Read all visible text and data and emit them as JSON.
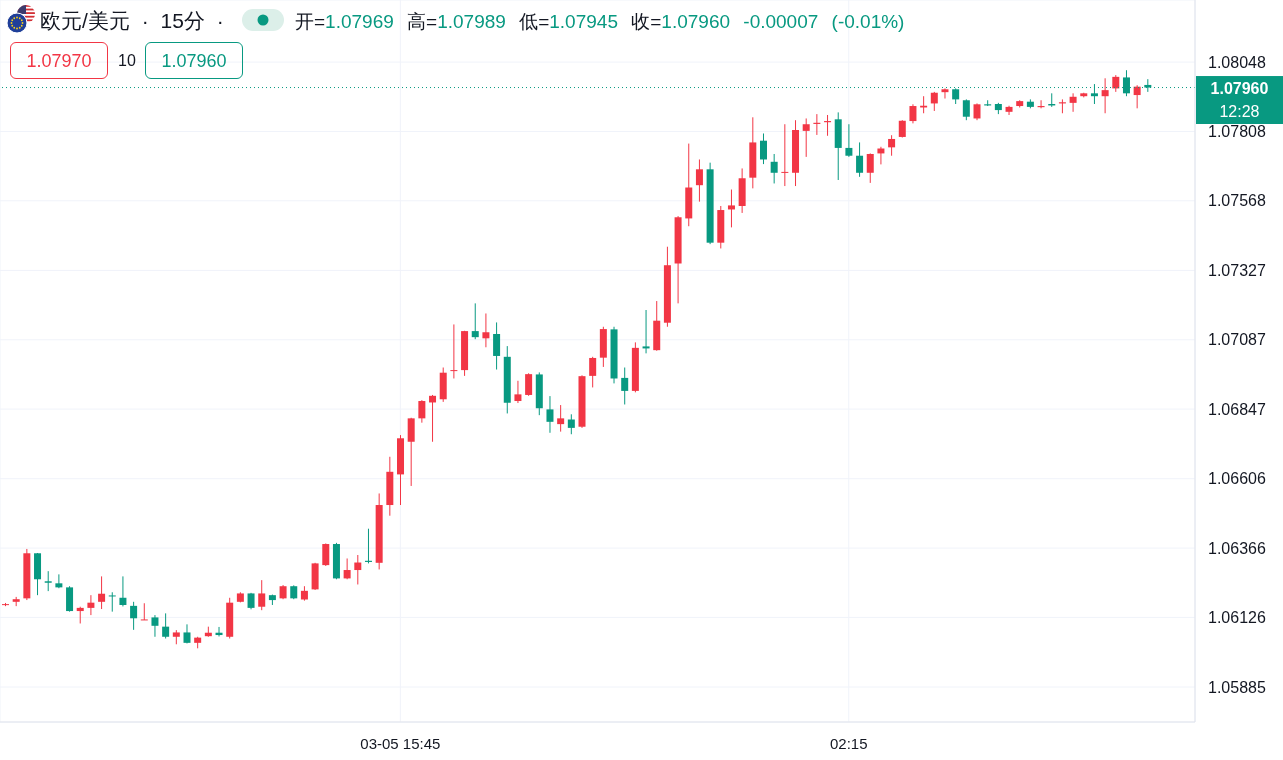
{
  "chart_data": {
    "type": "candlestick",
    "title": "欧元/美元 · 15分 ·",
    "subtitle": "开=1.07969 高=1.07989 低=1.07945 收=1.07960 -0.00007 (-0.01%)",
    "categories": [
      null,
      null,
      null,
      null,
      null,
      null,
      null,
      null,
      null,
      null,
      null,
      null,
      null,
      null,
      null,
      null,
      null,
      null,
      null,
      null,
      null,
      null,
      null,
      null,
      null,
      null,
      null,
      null,
      null,
      null,
      null,
      null,
      null,
      null,
      null,
      null,
      null,
      "03-05 15:45",
      null,
      null,
      null,
      null,
      null,
      null,
      null,
      null,
      null,
      null,
      null,
      null,
      null,
      null,
      null,
      null,
      null,
      null,
      null,
      null,
      null,
      null,
      null,
      null,
      null,
      null,
      null,
      null,
      null,
      null,
      null,
      null,
      null,
      null,
      null,
      null,
      null,
      null,
      null,
      null,
      null,
      "02:15",
      null,
      null,
      null,
      null,
      null,
      null,
      null,
      null,
      null,
      null,
      null,
      null,
      null,
      null,
      null,
      null,
      null,
      null,
      null,
      null,
      null,
      null,
      null,
      null,
      null,
      null,
      null,
      null
    ],
    "ohlc": [
      [
        1.06169,
        1.06176,
        1.06165,
        1.06172
      ],
      [
        1.0618,
        1.06197,
        1.06165,
        1.06189
      ],
      [
        1.06192,
        1.06363,
        1.06186,
        1.06348
      ],
      [
        1.06348,
        1.06349,
        1.06203,
        1.06258
      ],
      [
        1.06251,
        1.06286,
        1.06217,
        1.06246
      ],
      [
        1.06244,
        1.06275,
        1.06227,
        1.0623
      ],
      [
        1.0623,
        1.06234,
        1.06146,
        1.06148
      ],
      [
        1.06148,
        1.06163,
        1.06105,
        1.06159
      ],
      [
        1.06159,
        1.06203,
        1.06134,
        1.06177
      ],
      [
        1.0618,
        1.06268,
        1.06155,
        1.06208
      ],
      [
        1.06202,
        1.06213,
        1.06146,
        1.06199
      ],
      [
        1.06194,
        1.06268,
        1.06164,
        1.06169
      ],
      [
        1.06166,
        1.0618,
        1.06083,
        1.06123
      ],
      [
        1.06118,
        1.06175,
        1.06117,
        1.06119
      ],
      [
        1.06126,
        1.06134,
        1.06059,
        1.06097
      ],
      [
        1.06094,
        1.0614,
        1.06053,
        1.06059
      ],
      [
        1.06059,
        1.06082,
        1.06033,
        1.06074
      ],
      [
        1.06074,
        1.06102,
        1.06036,
        1.06038
      ],
      [
        1.06038,
        1.06059,
        1.06019,
        1.06056
      ],
      [
        1.06061,
        1.06094,
        1.06059,
        1.06073
      ],
      [
        1.06073,
        1.06093,
        1.0606,
        1.06065
      ],
      [
        1.06059,
        1.06194,
        1.06053,
        1.06177
      ],
      [
        1.0618,
        1.06213,
        1.06178,
        1.06209
      ],
      [
        1.06209,
        1.06211,
        1.06154,
        1.06159
      ],
      [
        1.06163,
        1.06255,
        1.06151,
        1.06209
      ],
      [
        1.06203,
        1.06205,
        1.06169,
        1.06186
      ],
      [
        1.06192,
        1.06238,
        1.06189,
        1.06234
      ],
      [
        1.06234,
        1.06237,
        1.06189,
        1.06192
      ],
      [
        1.06188,
        1.06234,
        1.06184,
        1.06218
      ],
      [
        1.06223,
        1.06315,
        1.06221,
        1.06313
      ],
      [
        1.06307,
        1.06382,
        1.06304,
        1.0638
      ],
      [
        1.0638,
        1.06384,
        1.06258,
        1.06261
      ],
      [
        1.06261,
        1.0633,
        1.06258,
        1.0629
      ],
      [
        1.0629,
        1.06342,
        1.0624,
        1.06316
      ],
      [
        1.06322,
        1.06433,
        1.06313,
        1.06318
      ],
      [
        1.06315,
        1.06555,
        1.06292,
        1.06515
      ],
      [
        1.06515,
        1.06682,
        1.06478,
        1.0663
      ],
      [
        1.06621,
        1.06757,
        1.06515,
        1.06746
      ],
      [
        1.06734,
        1.06817,
        1.06581,
        1.06815
      ],
      [
        1.06815,
        1.06878,
        1.068,
        1.06875
      ],
      [
        1.0687,
        1.06896,
        1.06734,
        1.06893
      ],
      [
        1.06881,
        1.06991,
        1.06872,
        1.06973
      ],
      [
        1.0698,
        1.0714,
        1.06953,
        1.06982
      ],
      [
        1.06982,
        1.07118,
        1.06962,
        1.07117
      ],
      [
        1.07117,
        1.07213,
        1.07089,
        1.07096
      ],
      [
        1.07092,
        1.07178,
        1.07061,
        1.07113
      ],
      [
        1.07107,
        1.07147,
        1.06984,
        1.07031
      ],
      [
        1.07028,
        1.07065,
        1.06832,
        1.06869
      ],
      [
        1.06875,
        1.06945,
        1.06868,
        1.06898
      ],
      [
        1.06896,
        1.06971,
        1.06893,
        1.06968
      ],
      [
        1.06967,
        1.06974,
        1.06826,
        1.0685
      ],
      [
        1.06846,
        1.06892,
        1.06765,
        1.06803
      ],
      [
        1.06795,
        1.06861,
        1.06769,
        1.06815
      ],
      [
        1.06811,
        1.06829,
        1.0676,
        1.06782
      ],
      [
        1.06786,
        1.06964,
        1.06782,
        1.06961
      ],
      [
        1.06962,
        1.07028,
        1.06922,
        1.07024
      ],
      [
        1.07025,
        1.07132,
        1.06993,
        1.07124
      ],
      [
        1.07123,
        1.07132,
        1.06936,
        1.06953
      ],
      [
        1.06955,
        1.06991,
        1.06863,
        1.0691
      ],
      [
        1.0691,
        1.07078,
        1.06905,
        1.07059
      ],
      [
        1.07064,
        1.0719,
        1.0704,
        1.07057
      ],
      [
        1.07051,
        1.07221,
        1.07049,
        1.07153
      ],
      [
        1.07146,
        1.07409,
        1.07132,
        1.07345
      ],
      [
        1.07351,
        1.07515,
        1.07213,
        1.07511
      ],
      [
        1.07507,
        1.07766,
        1.0748,
        1.07614
      ],
      [
        1.07622,
        1.07711,
        1.07565,
        1.07677
      ],
      [
        1.07677,
        1.077,
        1.07418,
        1.07423
      ],
      [
        1.07423,
        1.0755,
        1.07403,
        1.07536
      ],
      [
        1.07538,
        1.07607,
        1.07476,
        1.07552
      ],
      [
        1.0755,
        1.0768,
        1.07526,
        1.07646
      ],
      [
        1.07648,
        1.07857,
        1.07611,
        1.0777
      ],
      [
        1.07776,
        1.07801,
        1.07695,
        1.07711
      ],
      [
        1.07703,
        1.0773,
        1.07628,
        1.07665
      ],
      [
        1.07665,
        1.07833,
        1.07619,
        1.07668
      ],
      [
        1.07665,
        1.07847,
        1.07619,
        1.07813
      ],
      [
        1.0781,
        1.07853,
        1.0772,
        1.07833
      ],
      [
        1.07834,
        1.07868,
        1.07796,
        1.07838
      ],
      [
        1.0784,
        1.07865,
        1.07793,
        1.07844
      ],
      [
        1.0785,
        1.07874,
        1.0764,
        1.07751
      ],
      [
        1.07751,
        1.07833,
        1.0772,
        1.07724
      ],
      [
        1.07724,
        1.0777,
        1.07651,
        1.07665
      ],
      [
        1.07665,
        1.07732,
        1.0763,
        1.0773
      ],
      [
        1.07732,
        1.07755,
        1.07694,
        1.07749
      ],
      [
        1.07753,
        1.07795,
        1.07724,
        1.07782
      ],
      [
        1.07789,
        1.07847,
        1.07787,
        1.07845
      ],
      [
        1.07844,
        1.07902,
        1.07836,
        1.07896
      ],
      [
        1.07891,
        1.0793,
        1.07871,
        1.07897
      ],
      [
        1.07905,
        1.07945,
        1.07879,
        1.07942
      ],
      [
        1.07944,
        1.07957,
        1.07922,
        1.07954
      ],
      [
        1.07954,
        1.07957,
        1.07903,
        1.07919
      ],
      [
        1.07916,
        1.07919,
        1.07847,
        1.07859
      ],
      [
        1.07853,
        1.07905,
        1.07847,
        1.07902
      ],
      [
        1.07902,
        1.07916,
        1.07896,
        1.07898
      ],
      [
        1.07903,
        1.07907,
        1.07868,
        1.07882
      ],
      [
        1.07876,
        1.07897,
        1.07865,
        1.07893
      ],
      [
        1.07896,
        1.07916,
        1.07891,
        1.07913
      ],
      [
        1.07911,
        1.07919,
        1.07888,
        1.07893
      ],
      [
        1.07892,
        1.07916,
        1.07888,
        1.07896
      ],
      [
        1.07903,
        1.0794,
        1.07893,
        1.07898
      ],
      [
        1.07905,
        1.07919,
        1.07871,
        1.07909
      ],
      [
        1.07907,
        1.0794,
        1.07876,
        1.07928
      ],
      [
        1.0793,
        1.07942,
        1.07926,
        1.0794
      ],
      [
        1.0794,
        1.07972,
        1.07903,
        1.0793
      ],
      [
        1.0793,
        1.07992,
        1.07871,
        1.07951
      ],
      [
        1.07957,
        1.08003,
        1.07945,
        1.07997
      ],
      [
        1.07995,
        1.0802,
        1.0793,
        1.0794
      ],
      [
        1.07934,
        1.07968,
        1.07888,
        1.07963
      ],
      [
        1.07969,
        1.07989,
        1.07945,
        1.0796
      ]
    ],
    "colors": [
      "#f23645",
      "#f23645",
      "#f23645",
      "#089981",
      "#089981",
      "#089981",
      "#089981",
      "#f23645",
      "#f23645",
      "#f23645",
      "#089981",
      "#089981",
      "#089981",
      "#f23645",
      "#089981",
      "#089981",
      "#f23645",
      "#089981",
      "#f23645",
      "#f23645",
      "#089981",
      "#f23645",
      "#f23645",
      "#089981",
      "#f23645",
      "#089981",
      "#f23645",
      "#089981",
      "#f23645",
      "#f23645",
      "#f23645",
      "#089981",
      "#f23645",
      "#f23645",
      "#089981",
      "#f23645",
      "#f23645",
      "#f23645",
      "#f23645",
      "#f23645",
      "#f23645",
      "#f23645",
      "#f23645",
      "#f23645",
      "#089981",
      "#f23645",
      "#089981",
      "#089981",
      "#f23645",
      "#f23645",
      "#089981",
      "#089981",
      "#f23645",
      "#089981",
      "#f23645",
      "#f23645",
      "#f23645",
      "#089981",
      "#089981",
      "#f23645",
      "#089981",
      "#f23645",
      "#f23645",
      "#f23645",
      "#f23645",
      "#f23645",
      "#089981",
      "#f23645",
      "#f23645",
      "#f23645",
      "#f23645",
      "#089981",
      "#089981",
      "#f23645",
      "#f23645",
      "#f23645",
      "#f23645",
      "#f23645",
      "#089981",
      "#089981",
      "#089981",
      "#f23645",
      "#f23645",
      "#f23645",
      "#f23645",
      "#f23645",
      "#f23645",
      "#f23645",
      "#f23645",
      "#089981",
      "#089981",
      "#f23645",
      "#089981",
      "#089981",
      "#f23645",
      "#f23645",
      "#089981",
      "#f23645",
      "#089981",
      "#f23645",
      "#f23645",
      "#f23645",
      "#089981",
      "#f23645",
      "#f23645",
      "#089981",
      "#f23645",
      "#089981"
    ],
    "ylim": [
      1.05764,
      1.08263
    ],
    "yticks": [
      1.05885,
      1.06126,
      1.06366,
      1.06606,
      1.06847,
      1.07087,
      1.07327,
      1.07568,
      1.07808,
      1.08048
    ],
    "grid": true,
    "ref_lines": [
      {
        "axis": "y",
        "value": 1.0796,
        "label": "1.07960",
        "color": "#089981",
        "line_style": "dotted"
      }
    ],
    "annotations": [
      "1.07970",
      "10",
      "1.07960",
      "12:28"
    ]
  }
}
